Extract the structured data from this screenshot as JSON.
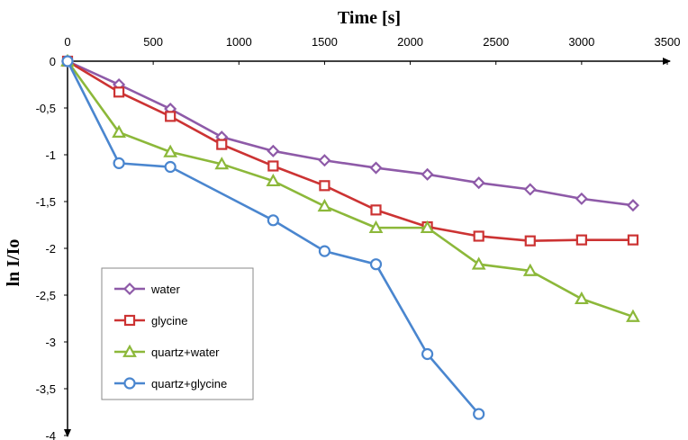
{
  "chart_data": {
    "type": "line",
    "title": "",
    "xlabel": "Time [s]",
    "ylabel": "ln I/Io",
    "xlim": [
      0,
      3500
    ],
    "ylim": [
      -4,
      0
    ],
    "x_ticks": [
      "0",
      "500",
      "1000",
      "1500",
      "2000",
      "2500",
      "3000",
      "3500"
    ],
    "y_ticks": [
      "0",
      "-0,5",
      "-1",
      "-1,5",
      "-2",
      "-2,5",
      "-3",
      "-3,5",
      "-4"
    ],
    "grid": false,
    "legend_position": "bottom-left",
    "series": [
      {
        "name": "water",
        "color": "#8e5aa8",
        "marker": "diamond",
        "x": [
          0,
          300,
          600,
          900,
          1200,
          1500,
          1800,
          2100,
          2400,
          2700,
          3000,
          3300
        ],
        "y": [
          0,
          -0.25,
          -0.51,
          -0.81,
          -0.96,
          -1.06,
          -1.14,
          -1.21,
          -1.3,
          -1.37,
          -1.47,
          -1.54
        ]
      },
      {
        "name": "glycine",
        "color": "#cc3333",
        "marker": "square",
        "x": [
          0,
          300,
          600,
          900,
          1200,
          1500,
          1800,
          2100,
          2400,
          2700,
          3000,
          3300
        ],
        "y": [
          0,
          -0.33,
          -0.59,
          -0.89,
          -1.12,
          -1.33,
          -1.59,
          -1.77,
          -1.87,
          -1.92,
          -1.91,
          -1.91
        ]
      },
      {
        "name": "quartz+water",
        "color": "#8cb83a",
        "marker": "triangle",
        "x": [
          0,
          300,
          600,
          900,
          1200,
          1500,
          1800,
          2100,
          2400,
          2700,
          3000,
          3300
        ],
        "y": [
          0,
          -0.76,
          -0.97,
          -1.1,
          -1.28,
          -1.55,
          -1.78,
          -1.78,
          -2.17,
          -2.24,
          -2.54,
          -2.73
        ]
      },
      {
        "name": "quartz+glycine",
        "color": "#4a86cf",
        "marker": "circle",
        "x": [
          0,
          300,
          600,
          1200,
          1500,
          1800,
          2100,
          2400
        ],
        "y": [
          0,
          -1.09,
          -1.13,
          -1.7,
          -2.03,
          -2.17,
          -3.13,
          -3.77
        ]
      }
    ]
  }
}
